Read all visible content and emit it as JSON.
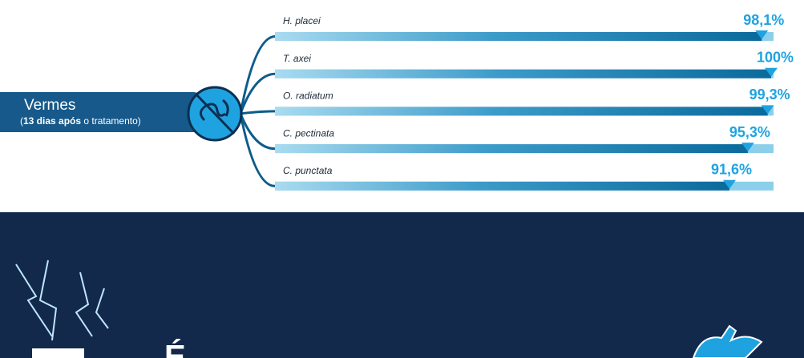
{
  "chart_data": {
    "type": "bar",
    "label": "Vermes",
    "subtitle_parts": [
      "(",
      "13 dias após",
      " o tratamento)"
    ],
    "categories": [
      "H. placei",
      "T. axei",
      "O. radiatum",
      "C. pectinata",
      "C. punctata"
    ],
    "values": [
      98.1,
      100,
      99.3,
      95.3,
      91.6
    ],
    "value_labels": [
      "98,1%",
      "100%",
      "99,3%",
      "95,3%",
      "91,6%"
    ],
    "xlim": [
      0,
      100
    ],
    "color": "#0b6a9c",
    "track_color": "#8ccfea",
    "label_color": "#1fa3e0"
  },
  "banner": {
    "text": "É"
  }
}
